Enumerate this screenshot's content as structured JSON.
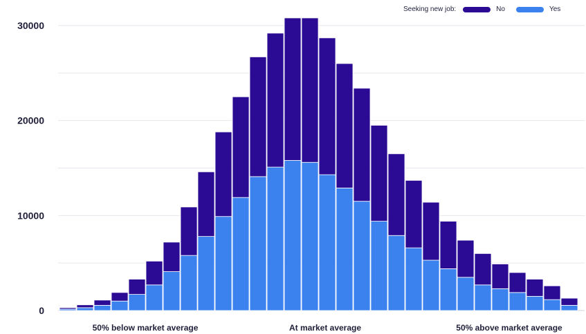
{
  "legend": {
    "title": "Seeking new job:",
    "items": [
      {
        "label": "No",
        "color": "#2b0b94"
      },
      {
        "label": "Yes",
        "color": "#3b82ef"
      }
    ]
  },
  "chart_data": {
    "type": "bar",
    "stacked": true,
    "title": "",
    "xlabel": "",
    "ylabel": "",
    "ylim": [
      0,
      30000
    ],
    "y_ticks": [
      0,
      10000,
      20000,
      30000
    ],
    "x_ticks": [
      "50% below market average",
      "At market average",
      "50% above market average"
    ],
    "grid": true,
    "legend_position": "top-right",
    "bin_count": 30,
    "series": [
      {
        "name": "Yes",
        "color": "#3b82ef",
        "values": [
          150,
          300,
          550,
          1000,
          1700,
          2700,
          4100,
          5800,
          7800,
          9900,
          11900,
          14100,
          15100,
          15800,
          15600,
          14300,
          12900,
          11500,
          9400,
          7900,
          6600,
          5300,
          4400,
          3500,
          2700,
          2300,
          1900,
          1500,
          1150,
          550
        ]
      },
      {
        "name": "No",
        "color": "#2b0b94",
        "values": [
          150,
          300,
          550,
          900,
          1600,
          2500,
          3100,
          5100,
          6800,
          8900,
          10600,
          12600,
          14100,
          15000,
          15200,
          14400,
          13100,
          11900,
          10100,
          8600,
          7100,
          6100,
          5000,
          3900,
          3300,
          2600,
          2100,
          1800,
          1450,
          750
        ]
      }
    ]
  }
}
